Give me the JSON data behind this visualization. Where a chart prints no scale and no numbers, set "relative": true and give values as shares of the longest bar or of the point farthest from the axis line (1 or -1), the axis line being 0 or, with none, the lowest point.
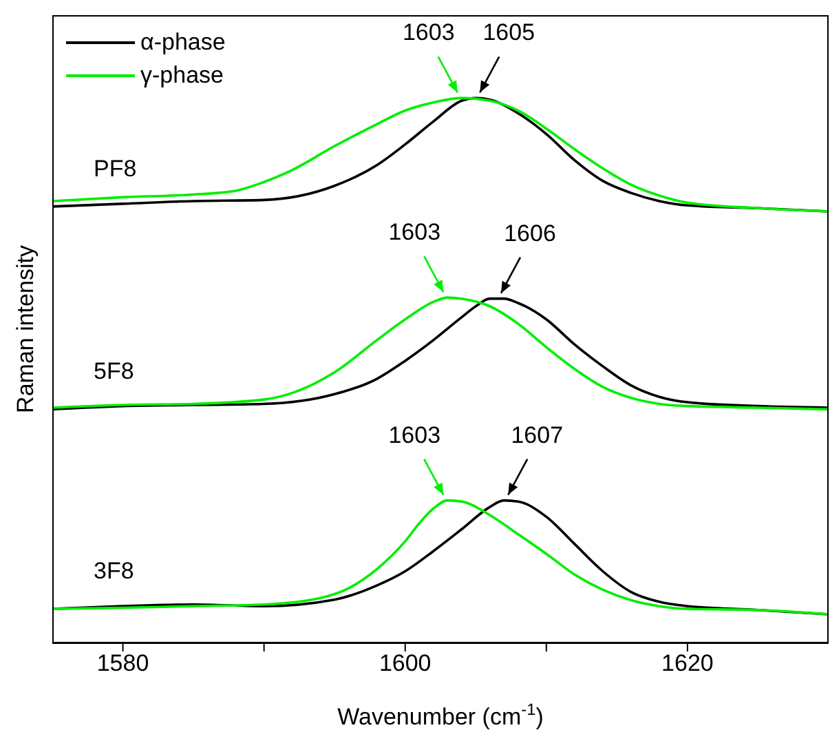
{
  "chart_data": {
    "type": "line",
    "relative": true,
    "xlabel": "Wavenumber (cm$^{-1}$)",
    "ylabel": "Raman intensity",
    "xlim": [
      1575,
      1630
    ],
    "xticks": [
      1580,
      {
        "value": 1590,
        "label": null
      },
      1600,
      {
        "value": 1610,
        "label": null
      },
      1620
    ],
    "legend": "top left",
    "marker": "none",
    "line_style": "solid",
    "series": [
      {
        "name": "α-phase",
        "color": "#000000",
        "x": [
          1575,
          1580,
          1585,
          1590,
          1595,
          1598,
          1600,
          1602,
          1604,
          1605,
          1606,
          1608,
          1610,
          1612,
          1614,
          1616,
          1618,
          1620,
          1625,
          1630
        ],
        "values": [
          0.801,
          0.806,
          0.811,
          0.813,
          0.839,
          0.877,
          0.915,
          0.957,
          0.995,
          1,
          0.997,
          0.972,
          0.934,
          0.886,
          0.848,
          0.826,
          0.811,
          0.803,
          0.798,
          0.792
        ]
      },
      {
        "name": "γ-phase",
        "color": "#00ee00",
        "x": [
          1575,
          1580,
          1585,
          1588,
          1590,
          1592,
          1595,
          1598,
          1600,
          1602,
          1604,
          1606,
          1608,
          1610,
          1612,
          1614,
          1616,
          1618,
          1620,
          1625,
          1630
        ],
        "values": [
          0.811,
          0.818,
          0.823,
          0.83,
          0.846,
          0.868,
          0.912,
          0.952,
          0.977,
          0.992,
          1,
          0.995,
          0.977,
          0.944,
          0.906,
          0.871,
          0.841,
          0.821,
          0.808,
          0.798,
          0.792
        ]
      },
      {
        "color": "#000000",
        "x": [
          1575,
          1580,
          1585,
          1590,
          1595,
          1598,
          1600,
          1602,
          1604,
          1605,
          1606,
          1607,
          1608,
          1610,
          1612,
          1614,
          1616,
          1618,
          1620,
          1625,
          1630
        ],
        "values": [
          0.429,
          0.435,
          0.437,
          0.439,
          0.457,
          0.485,
          0.518,
          0.556,
          0.598,
          0.618,
          0.632,
          0.632,
          0.624,
          0.594,
          0.548,
          0.508,
          0.473,
          0.452,
          0.442,
          0.435,
          0.432
        ]
      },
      {
        "color": "#00ee00",
        "x": [
          1575,
          1580,
          1585,
          1590,
          1592,
          1595,
          1598,
          1600,
          1602,
          1603,
          1604,
          1606,
          1608,
          1610,
          1612,
          1614,
          1616,
          1618,
          1620,
          1625,
          1630
        ],
        "values": [
          0.432,
          0.437,
          0.439,
          0.447,
          0.459,
          0.497,
          0.556,
          0.594,
          0.626,
          0.634,
          0.632,
          0.618,
          0.586,
          0.543,
          0.503,
          0.47,
          0.45,
          0.439,
          0.435,
          0.432,
          0.429
        ]
      },
      {
        "color": "#000000",
        "x": [
          1575,
          1580,
          1585,
          1590,
          1595,
          1598,
          1600,
          1602,
          1604,
          1606,
          1607,
          1608,
          1610,
          1612,
          1614,
          1616,
          1618,
          1620,
          1625,
          1630
        ],
        "values": [
          0.063,
          0.068,
          0.071,
          0.068,
          0.08,
          0.106,
          0.132,
          0.169,
          0.209,
          0.25,
          0.262,
          0.26,
          0.232,
          0.182,
          0.132,
          0.094,
          0.076,
          0.068,
          0.061,
          0.053
        ]
      },
      {
        "color": "#00ee00",
        "x": [
          1575,
          1580,
          1585,
          1590,
          1594,
          1596,
          1598,
          1600,
          1601,
          1602,
          1603,
          1604,
          1606,
          1608,
          1610,
          1612,
          1614,
          1616,
          1618,
          1620,
          1625,
          1630
        ],
        "values": [
          0.063,
          0.065,
          0.068,
          0.071,
          0.083,
          0.101,
          0.136,
          0.187,
          0.22,
          0.247,
          0.262,
          0.26,
          0.235,
          0.2,
          0.164,
          0.126,
          0.098,
          0.079,
          0.068,
          0.063,
          0.061,
          0.053
        ]
      }
    ],
    "annotations": [
      "PF8",
      "5F8",
      "3F8",
      {
        "text": "1605",
        "x": 1605,
        "y": 1
      },
      {
        "text": "1603",
        "x": 1604,
        "y": 1
      },
      {
        "text": "1606",
        "x": 1606.5,
        "y": 0.632
      },
      {
        "text": "1603",
        "x": 1603,
        "y": 0.634
      },
      {
        "text": "1607",
        "x": 1607,
        "y": 0.262
      },
      {
        "text": "1603",
        "x": 1603,
        "y": 0.262
      }
    ]
  }
}
